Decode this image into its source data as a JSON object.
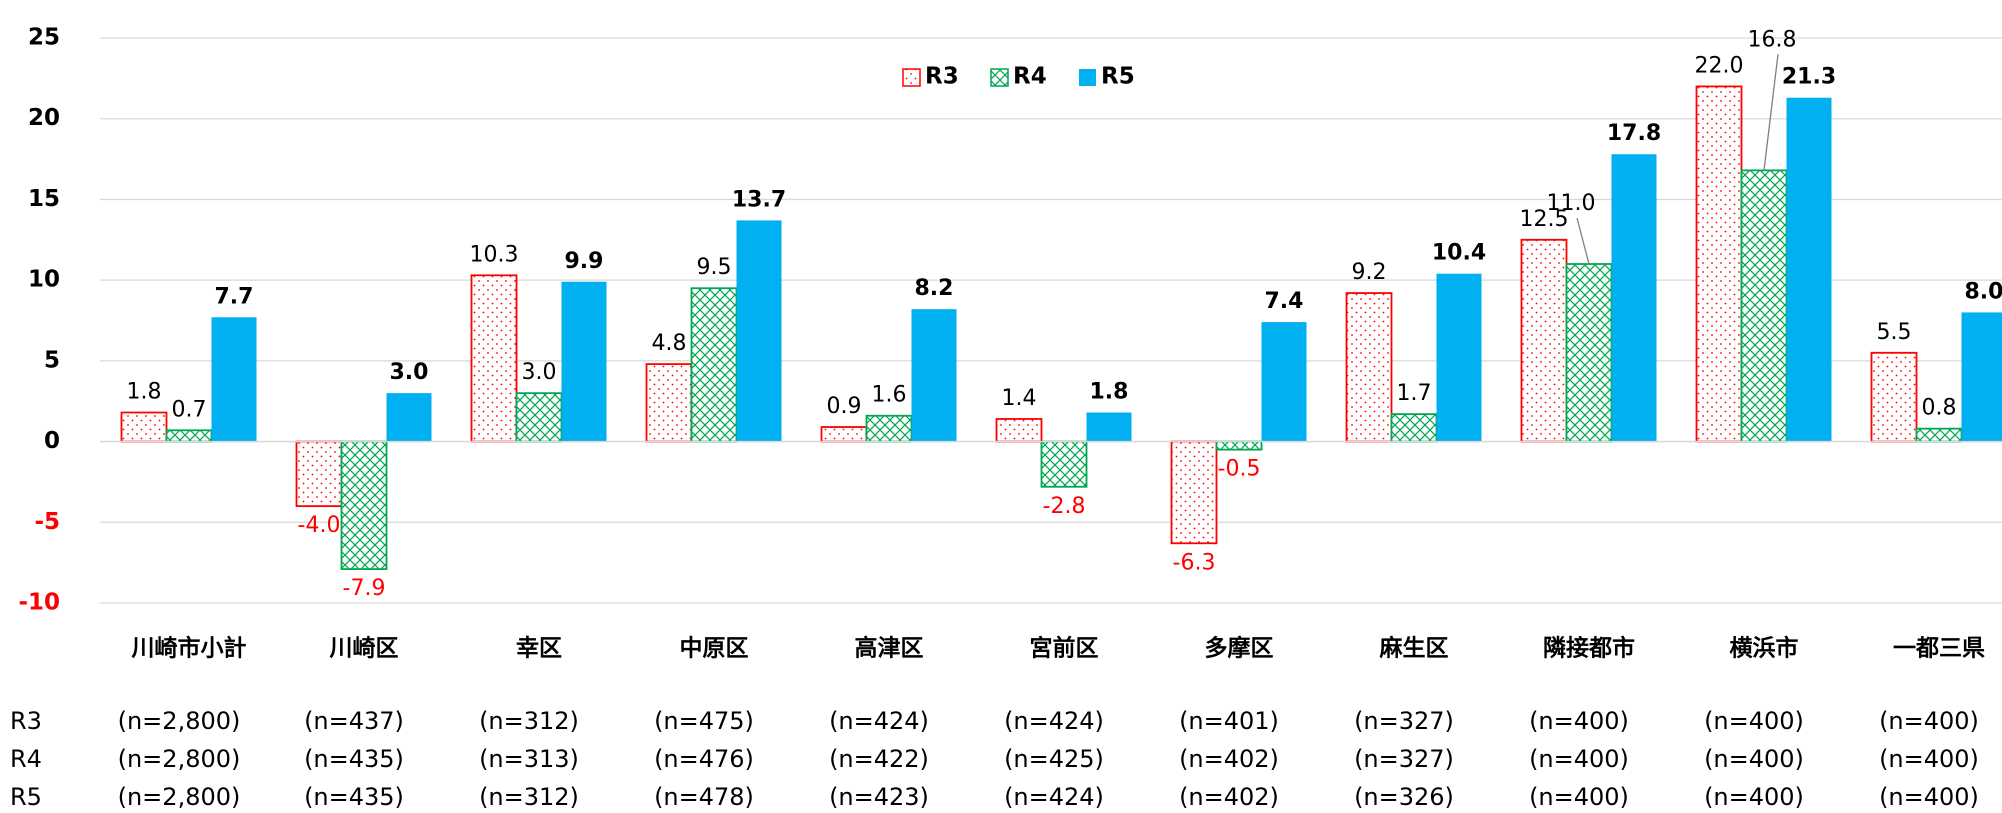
{
  "chart_data": {
    "type": "bar",
    "categories": [
      "川崎市小計",
      "川崎区",
      "幸区",
      "中原区",
      "高津区",
      "宮前区",
      "多摩区",
      "麻生区",
      "隣接都市",
      "横浜市",
      "一都三県"
    ],
    "series": [
      {
        "name": "R3",
        "color": "#ff0000",
        "values": [
          1.8,
          -4.0,
          10.3,
          4.8,
          0.9,
          1.4,
          -6.3,
          9.2,
          12.5,
          22.0,
          5.5
        ],
        "value_labels": [
          "1.8",
          "-4.0",
          "10.3",
          "4.8",
          "0.9",
          "1.4",
          "-6.3",
          "9.2",
          "12.5",
          "22.0",
          "5.5"
        ]
      },
      {
        "name": "R4",
        "color": "#00a651",
        "values": [
          0.7,
          -7.9,
          3.0,
          9.5,
          1.6,
          -2.8,
          -0.5,
          1.7,
          11.0,
          16.8,
          0.8
        ],
        "value_labels": [
          "0.7",
          "-7.9",
          "3.0",
          "9.5",
          "1.6",
          "-2.8",
          "-0.5",
          "1.7",
          "11.0",
          "16.8",
          "0.8"
        ]
      },
      {
        "name": "R5",
        "color": "#00b0f0",
        "values": [
          7.7,
          3.0,
          9.9,
          13.7,
          8.2,
          1.8,
          7.4,
          10.4,
          17.8,
          21.3,
          8.0
        ],
        "value_labels": [
          "7.7",
          "3.0",
          "9.9",
          "13.7",
          "8.2",
          "1.8",
          "7.4",
          "10.4",
          "17.8",
          "21.3",
          "8.0"
        ]
      }
    ],
    "ylim": [
      -10,
      25
    ],
    "yticks": [
      -10,
      -5,
      0,
      5,
      10,
      15,
      20,
      25
    ],
    "grid": true,
    "legend": "top"
  },
  "sample_sizes": {
    "rows": [
      {
        "label": "R3",
        "cells": [
          "(n=2,800)",
          "(n=437)",
          "(n=312)",
          "(n=475)",
          "(n=424)",
          "(n=424)",
          "(n=401)",
          "(n=327)",
          "(n=400)",
          "(n=400)",
          "(n=400)"
        ]
      },
      {
        "label": "R4",
        "cells": [
          "(n=2,800)",
          "(n=435)",
          "(n=313)",
          "(n=476)",
          "(n=422)",
          "(n=425)",
          "(n=402)",
          "(n=327)",
          "(n=400)",
          "(n=400)",
          "(n=400)"
        ]
      },
      {
        "label": "R5",
        "cells": [
          "(n=2,800)",
          "(n=435)",
          "(n=312)",
          "(n=478)",
          "(n=423)",
          "(n=424)",
          "(n=402)",
          "(n=326)",
          "(n=400)",
          "(n=400)",
          "(n=400)"
        ]
      }
    ]
  }
}
